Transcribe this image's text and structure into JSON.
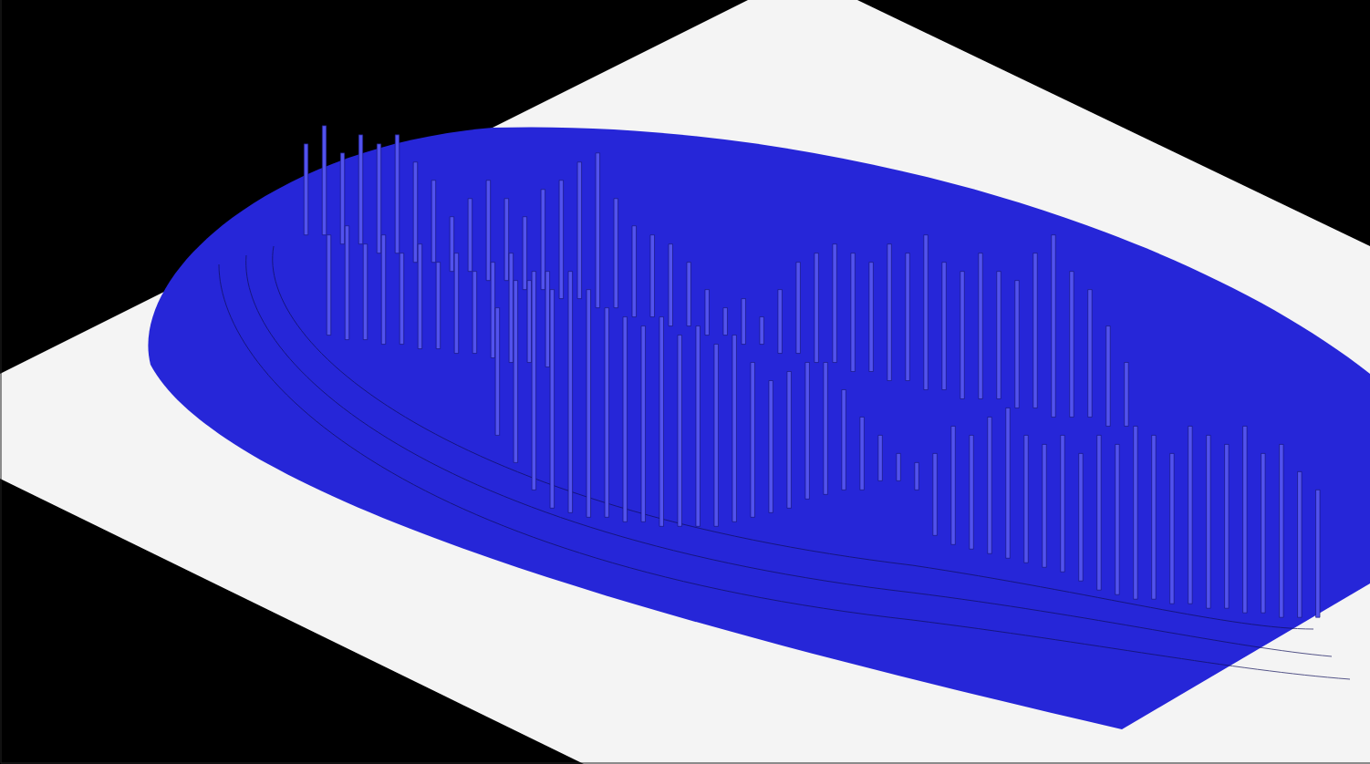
{
  "chart_data": {
    "type": "range_bar",
    "tick_labels": false,
    "color": "#5252ee",
    "xlim": [
      0,
      150.2
    ],
    "ylim": [
      0,
      83.8
    ],
    "layers": [
      {
        "x": [
          33.5,
          35.5,
          37.5,
          39.5,
          41.5,
          43.5,
          45.5,
          47.5,
          49.5,
          51.5,
          53.5,
          55.5,
          57.5,
          59.5,
          61.5,
          63.5,
          65.5,
          67.5,
          69.5,
          71.5,
          73.5,
          75.5,
          77.5,
          79.5,
          81.5,
          83.5,
          85.5,
          87.5,
          89.5,
          91.5,
          93.5,
          95.5,
          97.5,
          99.5,
          101.5,
          103.5,
          105.5,
          107.5,
          109.5,
          111.5,
          113.5,
          115.5,
          117.5,
          119.5,
          121.5,
          123.5
        ],
        "low": [
          58,
          58,
          57,
          57,
          56,
          56,
          55,
          55,
          54,
          54,
          53,
          53,
          52,
          52,
          51,
          51,
          50,
          50,
          49,
          49,
          48,
          48,
          47,
          47,
          46,
          46,
          45,
          45,
          44,
          44,
          43,
          43,
          42,
          42,
          41,
          41,
          40,
          40,
          40,
          39,
          39,
          38,
          38,
          38,
          37,
          37
        ],
        "high": [
          68,
          70,
          67,
          69,
          68,
          69,
          66,
          64,
          60,
          62,
          64,
          62,
          60,
          63,
          64,
          66,
          67,
          62,
          59,
          58,
          57,
          55,
          52,
          50,
          51,
          49,
          52,
          55,
          56,
          57,
          56,
          55,
          57,
          56,
          58,
          55,
          54,
          56,
          54,
          53,
          56,
          58,
          54,
          52,
          48,
          44
        ]
      },
      {
        "x": [
          36,
          38,
          40,
          42,
          44,
          46,
          48,
          50,
          52,
          54,
          56,
          58,
          60
        ],
        "low": [
          47,
          46.5,
          46.5,
          46,
          46,
          45.5,
          45.5,
          45,
          45,
          44.5,
          44,
          44,
          43.5
        ],
        "high": [
          58,
          59,
          57,
          58,
          56,
          57,
          55,
          56,
          54,
          55,
          56,
          53,
          54
        ]
      },
      {
        "x": [
          54.5,
          56.5,
          58.5,
          60.5,
          62.5,
          64.5,
          66.5,
          68.5,
          70.5,
          72.5,
          74.5,
          76.5,
          78.5,
          80.5,
          82.5,
          84.5,
          86.5,
          88.5,
          90.5,
          92.5,
          94.5,
          96.5,
          98.5,
          100.5,
          102.5,
          104.5,
          106.5,
          108.5,
          110.5,
          112.5,
          114.5,
          116.5,
          118.5,
          120.5,
          122.5,
          124.5,
          126.5,
          128.5,
          130.5,
          132.5,
          134.5,
          136.5,
          138.5,
          140.5,
          142.5,
          144.5
        ],
        "low": [
          36,
          33,
          30,
          28,
          27.5,
          27,
          27,
          26.5,
          26.5,
          26,
          26,
          26,
          26,
          26.5,
          27,
          27.5,
          28,
          29,
          29.5,
          30,
          30,
          31,
          31,
          30,
          25,
          24,
          23.5,
          23,
          22.5,
          22,
          21.5,
          21,
          20,
          19,
          18.5,
          18,
          18,
          17.5,
          17.5,
          17,
          17,
          16.5,
          16.5,
          16,
          16,
          16
        ],
        "high": [
          50,
          53,
          54,
          52,
          54,
          52,
          50,
          49,
          48,
          49,
          47,
          48,
          46,
          47,
          44,
          42,
          43,
          44,
          44,
          41,
          38,
          36,
          34,
          33,
          34,
          37,
          36,
          38,
          39,
          36,
          35,
          36,
          34,
          36,
          35,
          37,
          36,
          34,
          37,
          36,
          35,
          37,
          34,
          35,
          32,
          30
        ]
      }
    ]
  }
}
